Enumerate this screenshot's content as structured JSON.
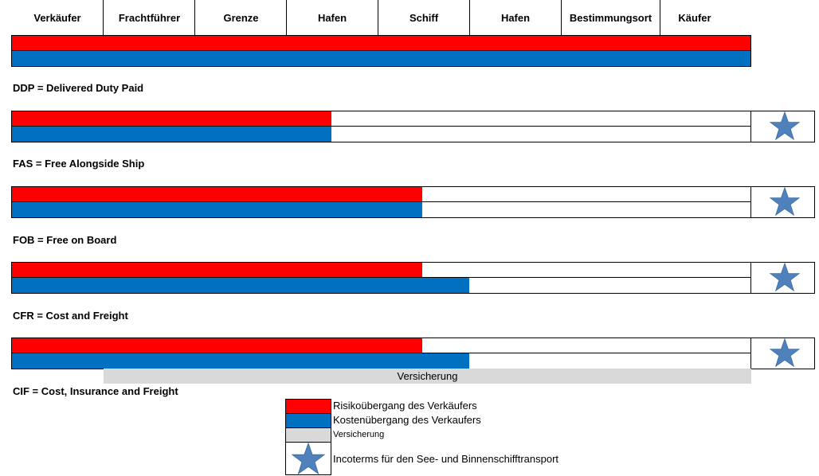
{
  "header": {
    "columns": [
      "Verkäufer",
      "Frachtführer",
      "Grenze",
      "Hafen",
      "Schiff",
      "Hafen",
      "Bestimmungsort",
      "Käufer"
    ]
  },
  "rows": [
    {
      "label": "DDP = Delivered Duty Paid",
      "risk_end": "Käufer",
      "cost_end": "Käufer",
      "sea_transport": false
    },
    {
      "label": "FAS = Free Alongside Ship",
      "risk_end": "Hafen",
      "cost_end": "Hafen",
      "sea_transport": true
    },
    {
      "label": "FOB = Free on Board",
      "risk_end": "Schiff",
      "cost_end": "Schiff",
      "sea_transport": true
    },
    {
      "label": "CFR = Cost and Freight",
      "risk_end": "Schiff",
      "cost_end": "Hafen",
      "sea_transport": true
    },
    {
      "label": "CIF = Cost, Insurance and Freight",
      "risk_end": "Schiff",
      "cost_end": "Hafen",
      "sea_transport": true,
      "insurance_label": "Versicherung"
    }
  ],
  "legend": {
    "risk": "Risikoübergang des Verkäufers",
    "cost": "Kostenübergang des Verkaufers",
    "insurance": "Versicherung",
    "star": "Incoterms für den See- und Binnenschifftransport"
  },
  "colors": {
    "risk": "#ff0000",
    "cost": "#0070c0",
    "insurance": "#d9d9d9",
    "star": "#4f81bd"
  },
  "icons": {
    "star": "star-icon"
  }
}
